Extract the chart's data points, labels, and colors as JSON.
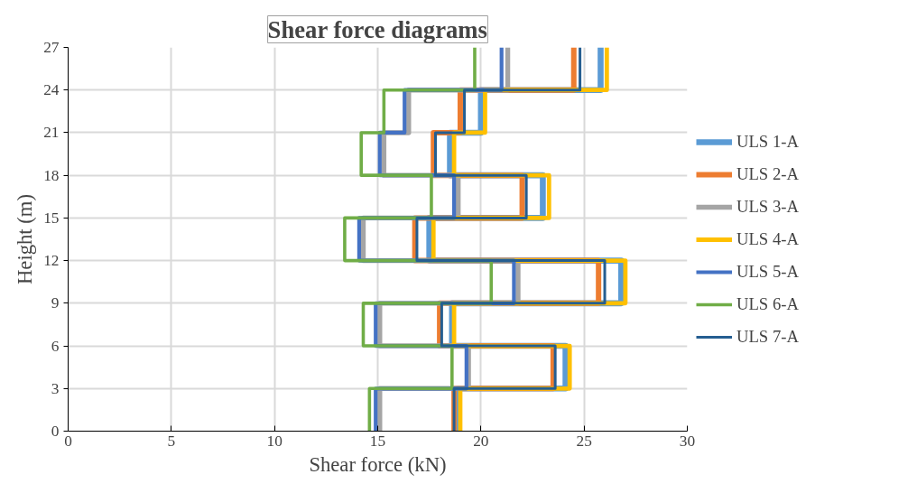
{
  "chart_data": {
    "type": "line",
    "title": "Shear force diagrams",
    "xlabel": "Shear force (kN)",
    "ylabel": "Height (m)",
    "xlim": [
      0,
      30
    ],
    "xticks": [
      0,
      5,
      10,
      15,
      20,
      25,
      30
    ],
    "ylim": [
      0,
      27
    ],
    "yticks": [
      0,
      3,
      6,
      9,
      12,
      15,
      18,
      21,
      24,
      27
    ],
    "grid": true,
    "legend": "right",
    "marker": "none",
    "line_style": "solid",
    "series": [
      {
        "name": "ULS 1-A",
        "color": "#5b9bd5",
        "x": [
          18.9,
          18.9,
          24.1,
          24.1,
          18.6,
          18.6,
          26.8,
          26.8,
          17.5,
          17.5,
          23.0,
          23.0,
          18.5,
          18.5,
          20.0,
          20.0,
          25.8,
          25.8
        ],
        "values": [
          0,
          3,
          3,
          6,
          6,
          9,
          9,
          12,
          12,
          15,
          15,
          18,
          18,
          21,
          21,
          24,
          24,
          27
        ]
      },
      {
        "name": "ULS 2-A",
        "color": "#ed7d31",
        "x": [
          18.7,
          18.7,
          23.5,
          23.5,
          18.0,
          18.0,
          25.7,
          25.7,
          16.8,
          16.8,
          22.0,
          22.0,
          17.7,
          17.7,
          19.0,
          19.0,
          24.5,
          24.5
        ],
        "values": [
          0,
          3,
          3,
          6,
          6,
          9,
          9,
          12,
          12,
          15,
          15,
          18,
          18,
          21,
          21,
          24,
          24,
          27
        ]
      },
      {
        "name": "ULS 3-A",
        "color": "#a5a5a5",
        "x": [
          15.1,
          15.1,
          19.4,
          19.4,
          15.1,
          15.1,
          21.8,
          21.8,
          14.3,
          14.3,
          18.9,
          18.9,
          15.3,
          15.3,
          16.5,
          16.5,
          21.3,
          21.3
        ],
        "values": [
          0,
          3,
          3,
          6,
          6,
          9,
          9,
          12,
          12,
          15,
          15,
          18,
          18,
          21,
          21,
          24,
          24,
          27
        ]
      },
      {
        "name": "ULS 4-A",
        "color": "#ffc000",
        "x": [
          19.0,
          19.0,
          24.3,
          24.3,
          18.7,
          18.7,
          27.0,
          27.0,
          17.7,
          17.7,
          23.3,
          23.3,
          18.7,
          18.7,
          20.2,
          20.2,
          26.1,
          26.1
        ],
        "values": [
          0,
          3,
          3,
          6,
          6,
          9,
          9,
          12,
          12,
          15,
          15,
          18,
          18,
          21,
          21,
          24,
          24,
          27
        ]
      },
      {
        "name": "ULS 5-A",
        "color": "#4472c4",
        "x": [
          14.9,
          14.9,
          19.3,
          19.3,
          14.9,
          14.9,
          21.6,
          21.6,
          14.1,
          14.1,
          18.7,
          18.7,
          15.1,
          15.1,
          16.3,
          16.3,
          21.0,
          21.0
        ],
        "values": [
          0,
          3,
          3,
          6,
          6,
          9,
          9,
          12,
          12,
          15,
          15,
          18,
          18,
          21,
          21,
          24,
          24,
          27
        ]
      },
      {
        "name": "ULS 6-A",
        "color": "#70ad47",
        "x": [
          14.6,
          14.6,
          18.6,
          18.6,
          14.3,
          14.3,
          20.5,
          20.5,
          13.4,
          13.4,
          17.6,
          17.6,
          14.2,
          14.2,
          15.3,
          15.3,
          19.7,
          19.7
        ],
        "values": [
          0,
          3,
          3,
          6,
          6,
          9,
          9,
          12,
          12,
          15,
          15,
          18,
          18,
          21,
          21,
          24,
          24,
          27
        ]
      },
      {
        "name": "ULS 7-A",
        "color": "#255e91",
        "x": [
          18.7,
          18.7,
          23.6,
          23.6,
          18.1,
          18.1,
          26.0,
          26.0,
          16.9,
          16.9,
          22.2,
          22.2,
          17.8,
          17.8,
          19.2,
          19.2,
          24.8,
          24.8
        ],
        "values": [
          0,
          3,
          3,
          6,
          6,
          9,
          9,
          12,
          12,
          15,
          15,
          18,
          18,
          21,
          21,
          24,
          24,
          27
        ]
      }
    ]
  }
}
